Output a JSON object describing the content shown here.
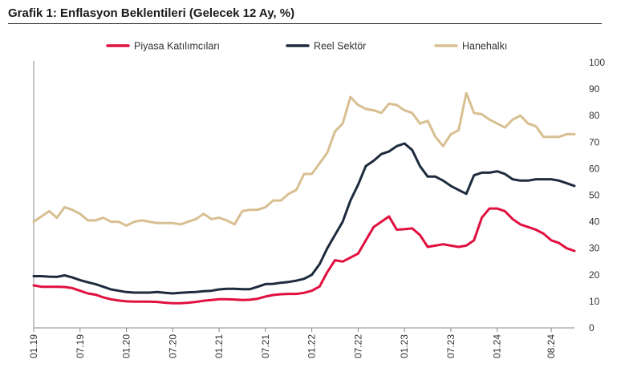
{
  "title": "Grafik 1: Enflasyon Beklentileri (Gelecek 12 Ay, %)",
  "chart_data": {
    "type": "line",
    "title": "Grafik 1: Enflasyon Beklentileri (Gelecek 12 Ay, %)",
    "xlabel": "",
    "ylabel": "",
    "ylim": [
      0,
      100
    ],
    "yticks": [
      0,
      10,
      20,
      30,
      40,
      50,
      60,
      70,
      80,
      90,
      100
    ],
    "y_axis_side": "right",
    "grid": false,
    "legend_position": "top",
    "x_tick_labels": [
      "01.19",
      "07.19",
      "01.20",
      "07.20",
      "01.21",
      "07.21",
      "01.22",
      "07.22",
      "01.23",
      "07.23",
      "01.24",
      "08.24"
    ],
    "x_tick_months": [
      "2019-01",
      "2019-07",
      "2020-01",
      "2020-07",
      "2021-01",
      "2021-07",
      "2022-01",
      "2022-07",
      "2023-01",
      "2023-07",
      "2024-01",
      "2024-08"
    ],
    "x_start": "2019-01",
    "x_end": "2024-08",
    "series": [
      {
        "name": "Piyasa Katılımcıları",
        "color": "#e0103f",
        "values": [
          16.0,
          15.5,
          15.5,
          15.5,
          15.4,
          15.0,
          14.0,
          13.0,
          12.5,
          11.5,
          10.8,
          10.3,
          10.0,
          9.9,
          9.9,
          9.9,
          9.8,
          9.5,
          9.3,
          9.3,
          9.5,
          9.8,
          10.2,
          10.5,
          10.8,
          10.8,
          10.7,
          10.5,
          10.6,
          11.0,
          11.8,
          12.4,
          12.7,
          12.8,
          12.8,
          13.2,
          14.0,
          15.6,
          21.0,
          25.5,
          25.0,
          26.5,
          28.0,
          33.0,
          38.0,
          40.0,
          42.0,
          37.0,
          37.2,
          37.5,
          35.0,
          30.5,
          31.0,
          31.5,
          31.0,
          30.5,
          31.0,
          33.0,
          41.5,
          45.0,
          45.0,
          44.0,
          41.0,
          39.0,
          38.0,
          37.0,
          35.5,
          33.0,
          32.0,
          30.0,
          29.0
        ]
      },
      {
        "name": "Reel Sektör",
        "color": "#1d2b3d",
        "values": [
          19.5,
          19.5,
          19.3,
          19.2,
          19.8,
          19.0,
          18.0,
          17.2,
          16.5,
          15.5,
          14.5,
          14.0,
          13.5,
          13.3,
          13.3,
          13.3,
          13.5,
          13.2,
          13.0,
          13.2,
          13.4,
          13.5,
          13.8,
          14.0,
          14.5,
          14.7,
          14.7,
          14.6,
          14.6,
          15.5,
          16.5,
          16.6,
          17.0,
          17.3,
          17.8,
          18.5,
          20.0,
          24.0,
          30.0,
          35.0,
          40.0,
          48.0,
          54.0,
          61.0,
          63.0,
          65.5,
          66.5,
          68.5,
          69.5,
          67.0,
          61.0,
          57.0,
          57.0,
          55.5,
          53.5,
          52.0,
          50.5,
          57.5,
          58.5,
          58.5,
          59.0,
          58.0,
          56.0,
          55.5,
          55.5,
          56.0,
          56.0,
          56.0,
          55.5,
          54.5,
          53.5
        ]
      },
      {
        "name": "Hanehalkı",
        "color": "#d8bf91",
        "values": [
          40.0,
          42.0,
          44.0,
          41.5,
          45.5,
          44.5,
          43.0,
          40.5,
          40.5,
          41.5,
          40.0,
          40.0,
          38.5,
          40.0,
          40.5,
          40.0,
          39.5,
          39.5,
          39.5,
          39.0,
          40.0,
          41.0,
          43.0,
          41.0,
          41.5,
          40.5,
          39.0,
          44.0,
          44.5,
          44.5,
          45.5,
          48.0,
          48.0,
          50.5,
          52.0,
          58.0,
          58.0,
          62.0,
          66.0,
          74.0,
          77.0,
          87.0,
          84.0,
          82.5,
          82.0,
          81.0,
          84.5,
          84.0,
          82.0,
          81.0,
          77.0,
          78.0,
          72.0,
          68.5,
          73.0,
          74.5,
          88.5,
          81.0,
          80.5,
          78.5,
          77.0,
          75.5,
          78.5,
          80.0,
          77.0,
          76.0,
          72.0,
          72.0,
          72.0,
          73.0,
          73.0
        ]
      }
    ]
  }
}
